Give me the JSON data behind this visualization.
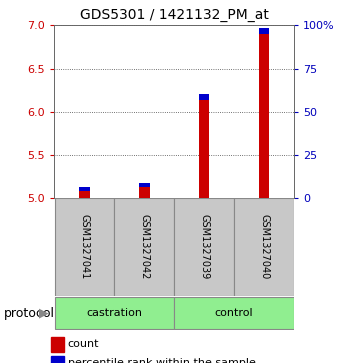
{
  "title": "GDS5301 / 1421132_PM_at",
  "samples": [
    "GSM1327041",
    "GSM1327042",
    "GSM1327039",
    "GSM1327040"
  ],
  "groups": [
    "castration",
    "castration",
    "control",
    "control"
  ],
  "group_labels": [
    "castration",
    "control"
  ],
  "ylim_left": [
    5.0,
    7.0
  ],
  "ylim_right": [
    0,
    100
  ],
  "yticks_left": [
    5.0,
    5.5,
    6.0,
    6.5,
    7.0
  ],
  "yticks_right": [
    0,
    25,
    50,
    75,
    100
  ],
  "ytick_right_labels": [
    "0",
    "25",
    "50",
    "75",
    "100%"
  ],
  "red_bar_bottoms": [
    5.0,
    5.0,
    5.0,
    5.0
  ],
  "red_bar_tops": [
    5.08,
    5.12,
    6.14,
    6.9
  ],
  "blue_bar_bottoms": [
    5.08,
    5.12,
    6.14,
    6.9
  ],
  "blue_bar_tops": [
    5.13,
    5.17,
    6.2,
    6.97
  ],
  "bar_width": 0.18,
  "bar_positions": [
    0.5,
    1.5,
    2.5,
    3.5
  ],
  "red_color": "#cc0000",
  "blue_color": "#0000cc",
  "left_tick_color": "#cc0000",
  "right_tick_color": "#0000bb",
  "sample_box_color": "#c8c8c8",
  "group_box_color": "#90ee90",
  "background_color": "#ffffff",
  "legend_items": [
    "count",
    "percentile rank within the sample"
  ],
  "protocol_label": "protocol"
}
